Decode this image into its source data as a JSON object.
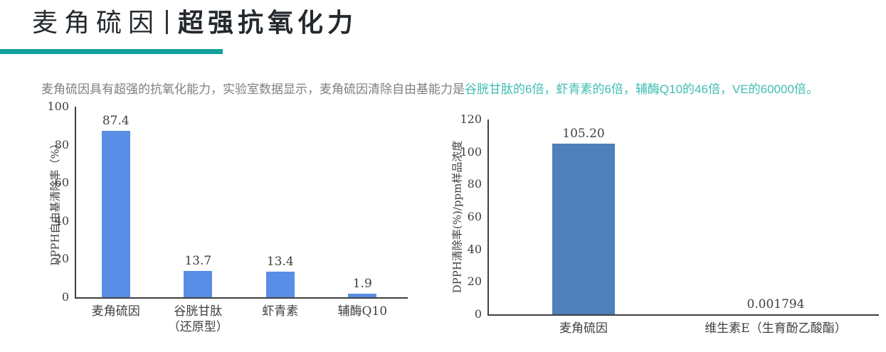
{
  "colors": {
    "accent_teal": "#12A19A",
    "subtitle_gray": "#7f7f7f",
    "subtitle_teal": "#3EBDB4",
    "title_text": "#24292e",
    "axis": "#404040",
    "chart_text": "#3f3f3f",
    "left_bar_blue": "#5A8EE6",
    "right_bar_blue": "#4E80BC"
  },
  "header": {
    "title_part1": "麦角硫因",
    "title_separator": "|",
    "title_part2": "超强抗氧化力"
  },
  "subtitle": {
    "lead": "麦角硫因具有超强的抗氧化能力，实验室数据显示，麦角硫因清除自由基能力是",
    "highlight": "谷胱甘肽的6倍，虾青素的6倍，辅酶Q10的46倍，VE的60000倍。"
  },
  "chart_data": [
    {
      "type": "bar",
      "title": "",
      "xlabel": "",
      "ylabel": "DPPH自由基清除率（%）",
      "categories": [
        "麦角硫因",
        "谷胱甘肽\n（还原型）",
        "虾青素",
        "辅酶Q10"
      ],
      "values": [
        87.4,
        13.7,
        13.4,
        1.9
      ],
      "value_labels": [
        "87.4",
        "13.7",
        "13.4",
        "1.9"
      ],
      "ylim": [
        0,
        100
      ],
      "ytick_step": 20,
      "yticks": [
        0,
        20,
        40,
        60,
        80,
        100
      ],
      "bar_color": "#5A8EE6",
      "grid": false,
      "legend": "none"
    },
    {
      "type": "bar",
      "title": "",
      "xlabel": "",
      "ylabel": "DPPH清除率(%)/ppm样品浓度",
      "categories": [
        "麦角硫因",
        "维生素E（生育酚乙酸酯）"
      ],
      "values": [
        105.2,
        0.001794
      ],
      "value_labels": [
        "105.20",
        "0.001794"
      ],
      "ylim": [
        0,
        120
      ],
      "ytick_step": 20,
      "yticks": [
        0,
        20,
        40,
        60,
        80,
        100,
        120
      ],
      "bar_color": "#4E80BC",
      "grid": false,
      "legend": "none"
    }
  ]
}
